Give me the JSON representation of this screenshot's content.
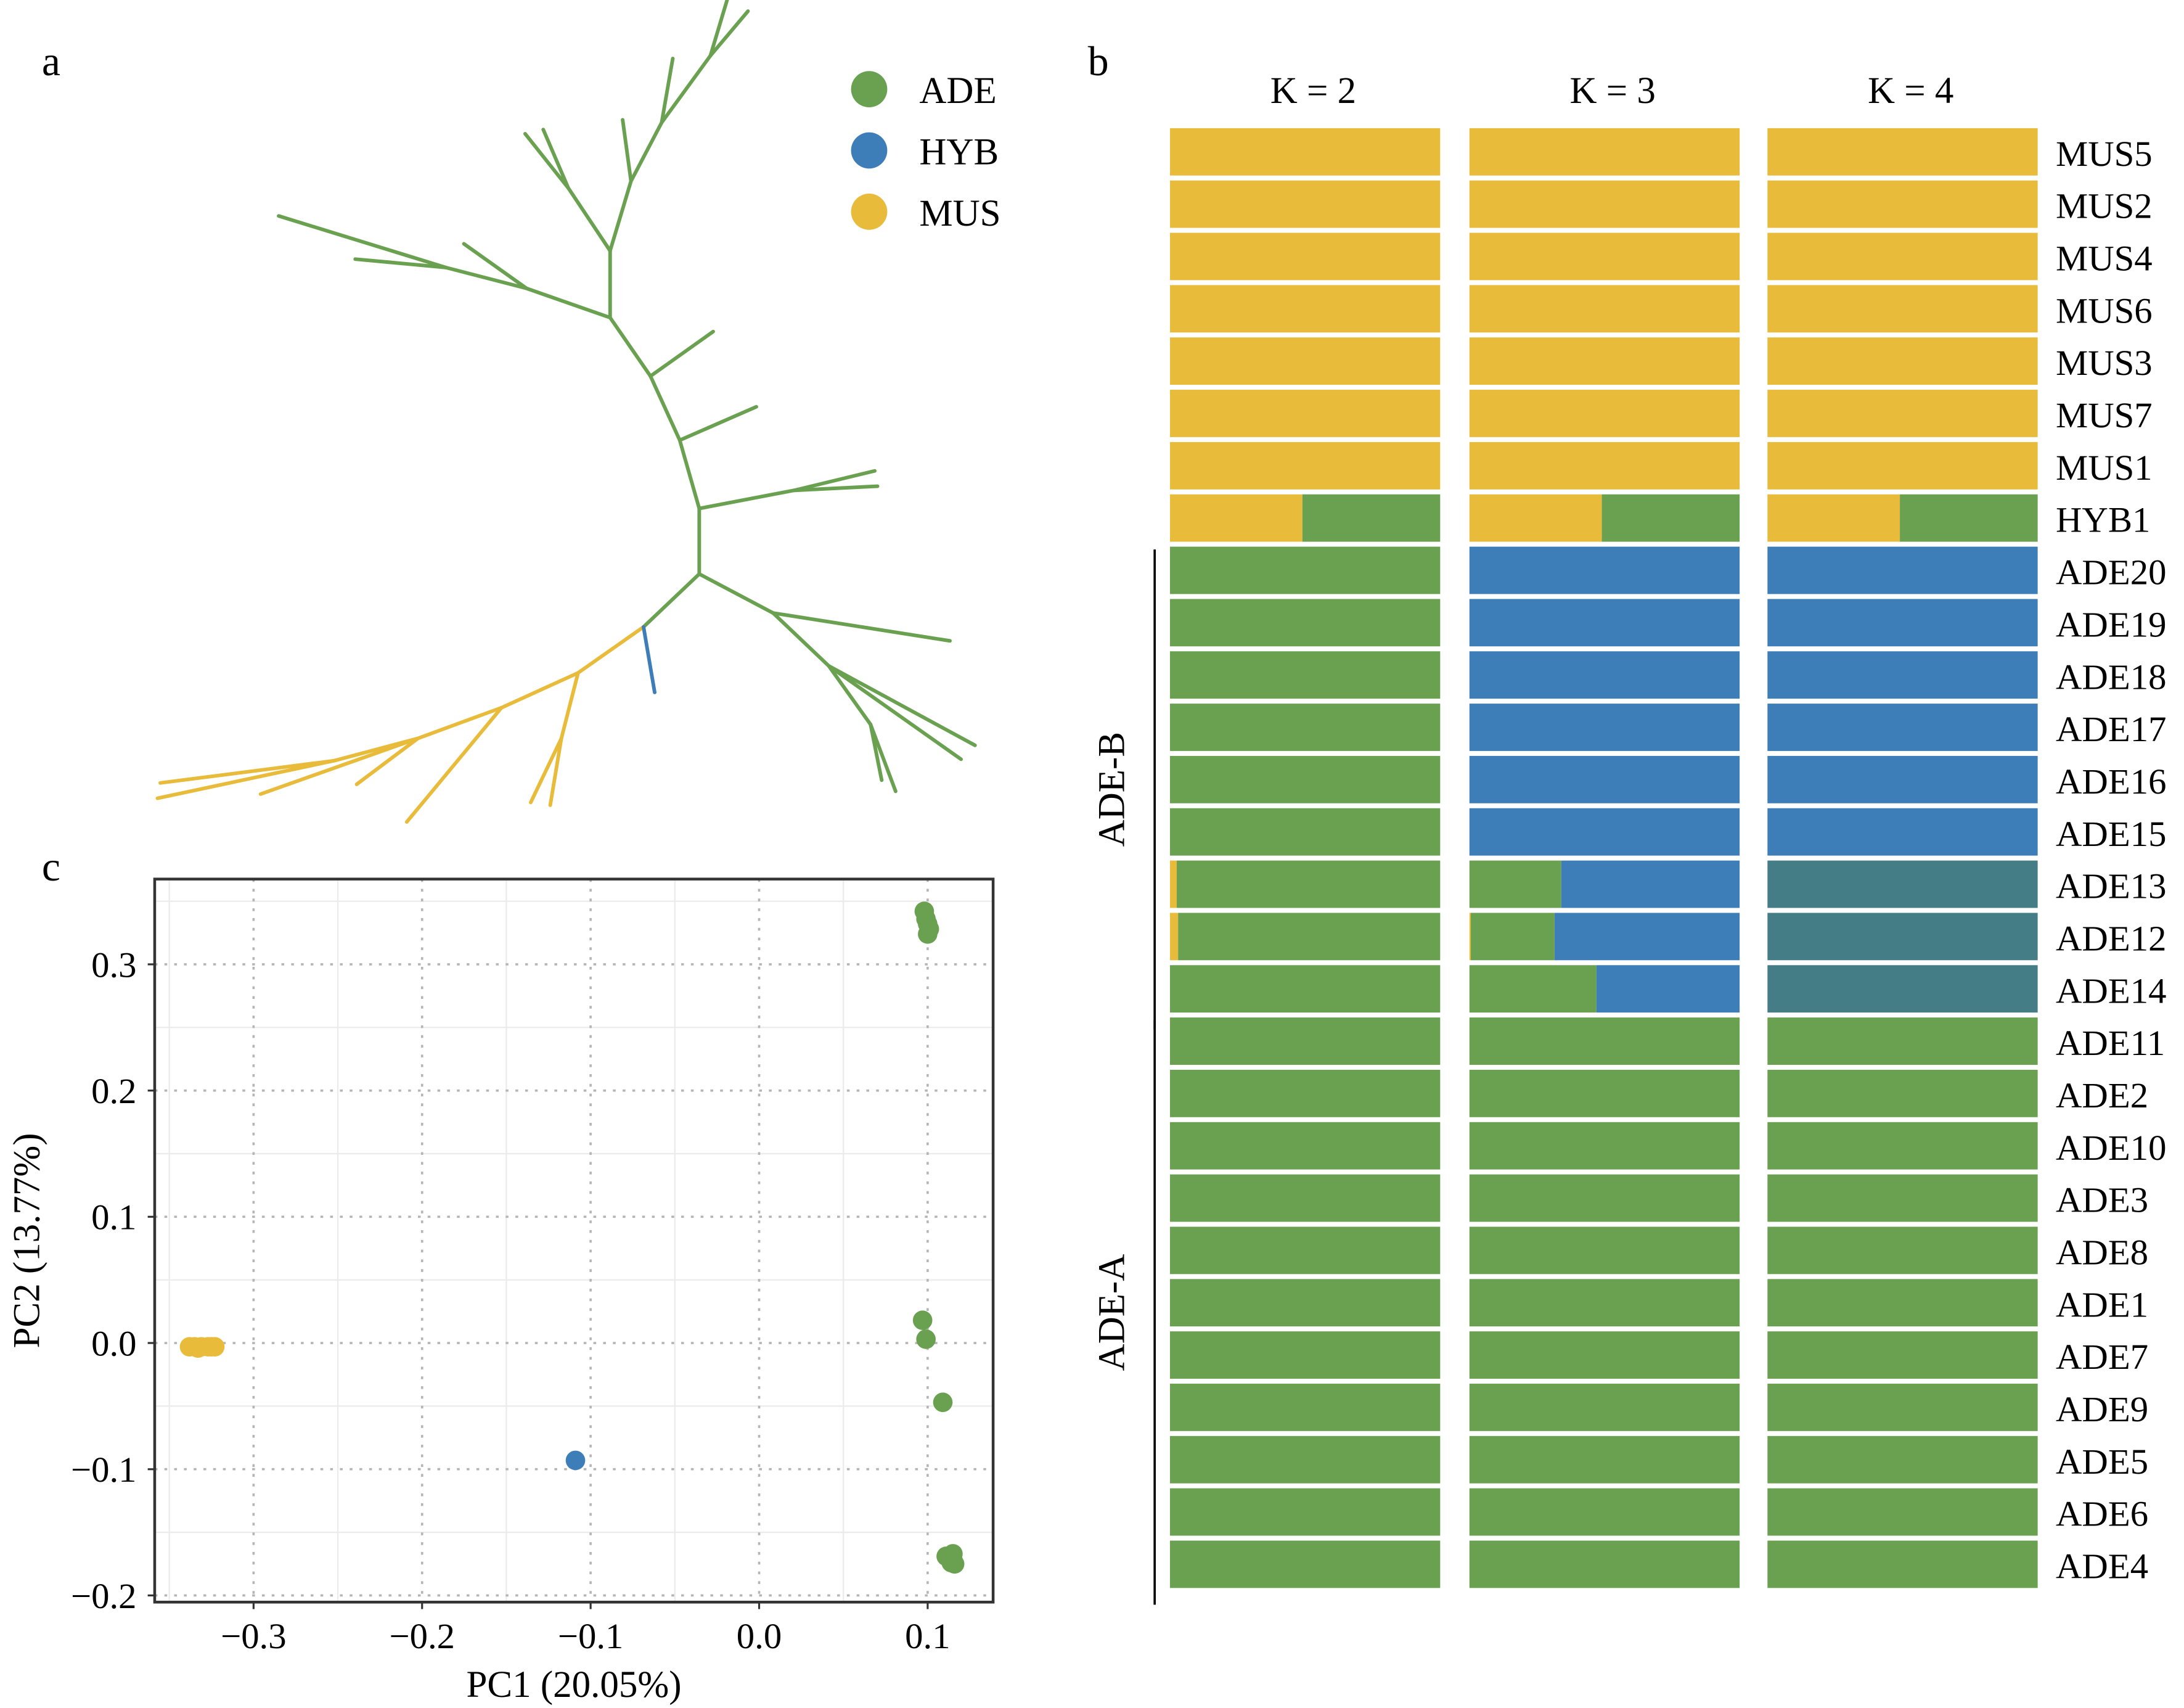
{
  "panels": {
    "a": "a",
    "b": "b",
    "c": "c"
  },
  "colors": {
    "ADE": "#6aa150",
    "HYB": "#3d7eb8",
    "MUS": "#e8bc3a",
    "cluster4": "#457d86"
  },
  "legend": [
    {
      "label": "ADE",
      "color": "#6aa150"
    },
    {
      "label": "HYB",
      "color": "#3d7eb8"
    },
    {
      "label": "MUS",
      "color": "#e8bc3a"
    }
  ],
  "chart_data": [
    {
      "panel": "a",
      "type": "tree",
      "groups": [
        "ADE",
        "HYB",
        "MUS"
      ]
    },
    {
      "panel": "b",
      "type": "bar",
      "stacked": true,
      "k_labels": [
        "K = 2",
        "K = 3",
        "K = 4"
      ],
      "component_colors": [
        "#e8bc3a",
        "#6aa150",
        "#3d7eb8",
        "#457d86"
      ],
      "samples": [
        {
          "name": "MUS5",
          "K2": [
            1,
            0
          ],
          "K3": [
            1,
            0,
            0
          ],
          "K4": [
            1,
            0,
            0,
            0
          ]
        },
        {
          "name": "MUS2",
          "K2": [
            1,
            0
          ],
          "K3": [
            1,
            0,
            0
          ],
          "K4": [
            1,
            0,
            0,
            0
          ]
        },
        {
          "name": "MUS4",
          "K2": [
            1,
            0
          ],
          "K3": [
            1,
            0,
            0
          ],
          "K4": [
            1,
            0,
            0,
            0
          ]
        },
        {
          "name": "MUS6",
          "K2": [
            1,
            0
          ],
          "K3": [
            1,
            0,
            0
          ],
          "K4": [
            1,
            0,
            0,
            0
          ]
        },
        {
          "name": "MUS3",
          "K2": [
            1,
            0
          ],
          "K3": [
            1,
            0,
            0
          ],
          "K4": [
            1,
            0,
            0,
            0
          ]
        },
        {
          "name": "MUS7",
          "K2": [
            1,
            0
          ],
          "K3": [
            1,
            0,
            0
          ],
          "K4": [
            1,
            0,
            0,
            0
          ]
        },
        {
          "name": "MUS1",
          "K2": [
            1,
            0
          ],
          "K3": [
            1,
            0,
            0
          ],
          "K4": [
            1,
            0,
            0,
            0
          ]
        },
        {
          "name": "HYB1",
          "K2": [
            0.49,
            0.51
          ],
          "K3": [
            0.49,
            0.51,
            0
          ],
          "K4": [
            0.49,
            0.51,
            0,
            0
          ]
        },
        {
          "name": "ADE20",
          "K2": [
            0,
            1
          ],
          "K3": [
            0,
            0,
            1
          ],
          "K4": [
            0,
            0,
            1,
            0
          ]
        },
        {
          "name": "ADE19",
          "K2": [
            0,
            1
          ],
          "K3": [
            0,
            0,
            1
          ],
          "K4": [
            0,
            0,
            1,
            0
          ]
        },
        {
          "name": "ADE18",
          "K2": [
            0,
            1
          ],
          "K3": [
            0,
            0,
            1
          ],
          "K4": [
            0,
            0,
            1,
            0
          ]
        },
        {
          "name": "ADE17",
          "K2": [
            0,
            1
          ],
          "K3": [
            0,
            0,
            1
          ],
          "K4": [
            0,
            0,
            1,
            0
          ]
        },
        {
          "name": "ADE16",
          "K2": [
            0,
            1
          ],
          "K3": [
            0,
            0,
            1
          ],
          "K4": [
            0,
            0,
            1,
            0
          ]
        },
        {
          "name": "ADE15",
          "K2": [
            0,
            1
          ],
          "K3": [
            0,
            0,
            1
          ],
          "K4": [
            0,
            0,
            1,
            0
          ]
        },
        {
          "name": "ADE13",
          "K2": [
            0.025,
            0.975
          ],
          "K3": [
            0,
            0.34,
            0.66
          ],
          "K4": [
            0,
            0,
            0,
            1
          ]
        },
        {
          "name": "ADE12",
          "K2": [
            0.03,
            0.97
          ],
          "K3": [
            0.005,
            0.31,
            0.685
          ],
          "K4": [
            0,
            0,
            0,
            1
          ]
        },
        {
          "name": "ADE14",
          "K2": [
            0,
            1
          ],
          "K3": [
            0,
            0.47,
            0.53
          ],
          "K4": [
            0,
            0,
            0,
            1
          ]
        },
        {
          "name": "ADE11",
          "K2": [
            0,
            1
          ],
          "K3": [
            0,
            1,
            0
          ],
          "K4": [
            0,
            1,
            0,
            0
          ]
        },
        {
          "name": "ADE2",
          "K2": [
            0,
            1
          ],
          "K3": [
            0,
            1,
            0
          ],
          "K4": [
            0,
            1,
            0,
            0
          ]
        },
        {
          "name": "ADE10",
          "K2": [
            0,
            1
          ],
          "K3": [
            0,
            1,
            0
          ],
          "K4": [
            0,
            1,
            0,
            0
          ]
        },
        {
          "name": "ADE3",
          "K2": [
            0,
            1
          ],
          "K3": [
            0,
            1,
            0
          ],
          "K4": [
            0,
            1,
            0,
            0
          ]
        },
        {
          "name": "ADE8",
          "K2": [
            0,
            1
          ],
          "K3": [
            0,
            1,
            0
          ],
          "K4": [
            0,
            1,
            0,
            0
          ]
        },
        {
          "name": "ADE1",
          "K2": [
            0,
            1
          ],
          "K3": [
            0,
            1,
            0
          ],
          "K4": [
            0,
            1,
            0,
            0
          ]
        },
        {
          "name": "ADE7",
          "K2": [
            0,
            1
          ],
          "K3": [
            0,
            1,
            0
          ],
          "K4": [
            0,
            1,
            0,
            0
          ]
        },
        {
          "name": "ADE9",
          "K2": [
            0,
            1
          ],
          "K3": [
            0,
            1,
            0
          ],
          "K4": [
            0,
            1,
            0,
            0
          ]
        },
        {
          "name": "ADE5",
          "K2": [
            0,
            1
          ],
          "K3": [
            0,
            1,
            0
          ],
          "K4": [
            0,
            1,
            0,
            0
          ]
        },
        {
          "name": "ADE6",
          "K2": [
            0,
            1
          ],
          "K3": [
            0,
            1,
            0
          ],
          "K4": [
            0,
            1,
            0,
            0
          ]
        },
        {
          "name": "ADE4",
          "K2": [
            0,
            1
          ],
          "K3": [
            0,
            1,
            0
          ],
          "K4": [
            0,
            1,
            0,
            0
          ]
        }
      ],
      "brackets": [
        {
          "label": "ADE-B",
          "from": "ADE20",
          "to": "ADE14"
        },
        {
          "label": "ADE-A",
          "from": "ADE11",
          "to": "ADE4"
        }
      ]
    },
    {
      "panel": "c",
      "type": "scatter",
      "xlabel": "PC1 (20.05%)",
      "ylabel": "PC2 (13.77%)",
      "xlim": [
        -0.36,
        0.14
      ],
      "ylim": [
        -0.2,
        0.355
      ],
      "xticks": [
        -0.3,
        -0.2,
        -0.1,
        0.0,
        0.1
      ],
      "xtick_labels": [
        "−0.3",
        "−0.2",
        "−0.1",
        "0.0",
        "0.1"
      ],
      "yticks": [
        -0.2,
        -0.1,
        0.0,
        0.1,
        0.2,
        0.3
      ],
      "ytick_labels": [
        "−0.2",
        "−0.1",
        "0.0",
        "0.1",
        "0.2",
        "0.3"
      ],
      "grid": true,
      "series": [
        {
          "group": "MUS",
          "color": "#e8bc3a",
          "points": [
            [
              -0.338,
              -0.003
            ],
            [
              -0.335,
              -0.003
            ],
            [
              -0.333,
              -0.004
            ],
            [
              -0.331,
              -0.003
            ],
            [
              -0.327,
              -0.003
            ],
            [
              -0.325,
              -0.003
            ],
            [
              -0.323,
              -0.003
            ]
          ]
        },
        {
          "group": "HYB",
          "color": "#3d7eb8",
          "points": [
            [
              -0.109,
              -0.093
            ]
          ]
        },
        {
          "group": "ADE",
          "color": "#6aa150",
          "points": [
            [
              0.098,
              0.342
            ],
            [
              0.099,
              0.336
            ],
            [
              0.1,
              0.332
            ],
            [
              0.101,
              0.328
            ],
            [
              0.1,
              0.324
            ],
            [
              0.097,
              0.018
            ],
            [
              0.099,
              0.003
            ],
            [
              0.109,
              -0.047
            ],
            [
              0.111,
              -0.169
            ],
            [
              0.113,
              -0.17
            ],
            [
              0.115,
              -0.167
            ],
            [
              0.114,
              -0.174
            ],
            [
              0.116,
              -0.175
            ],
            [
              0.115,
              -0.172
            ]
          ]
        }
      ]
    }
  ]
}
